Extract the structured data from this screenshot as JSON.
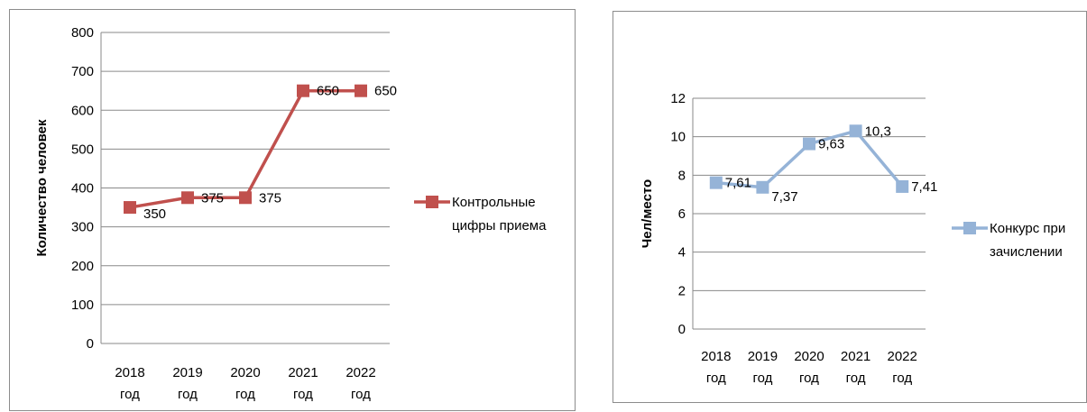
{
  "chart_data": [
    {
      "type": "line",
      "title": "",
      "ylabel": "Количество человек",
      "xlabel": "",
      "categories": [
        [
          "2018",
          "год"
        ],
        [
          "2019",
          "год"
        ],
        [
          "2020",
          "год"
        ],
        [
          "2021",
          "год"
        ],
        [
          "2022",
          "год"
        ]
      ],
      "ylim": [
        0,
        800
      ],
      "yticks": [
        "0",
        "100",
        "200",
        "300",
        "400",
        "500",
        "600",
        "700",
        "800"
      ],
      "grid": true,
      "legend": "right",
      "series": [
        {
          "name": [
            "Контрольные",
            "цифры приема"
          ],
          "values": [
            350,
            375,
            375,
            650,
            650
          ],
          "labels": [
            "350",
            "375",
            "375",
            "650",
            "650"
          ],
          "color": "#c0504d"
        }
      ]
    },
    {
      "type": "line",
      "title": "",
      "ylabel": "Чел/место",
      "xlabel": "",
      "categories": [
        [
          "2018",
          "год"
        ],
        [
          "2019",
          "год"
        ],
        [
          "2020",
          "год"
        ],
        [
          "2021",
          "год"
        ],
        [
          "2022",
          "год"
        ]
      ],
      "ylim": [
        0,
        12
      ],
      "yticks": [
        "0",
        "2",
        "4",
        "6",
        "8",
        "10",
        "12"
      ],
      "grid": true,
      "legend": "right",
      "series": [
        {
          "name": [
            "Конкурс при",
            "зачислении"
          ],
          "values": [
            7.61,
            7.37,
            9.63,
            10.3,
            7.41
          ],
          "labels": [
            "7,61",
            "7,37",
            "9,63",
            "10,3",
            "7,41"
          ],
          "color": "#95b3d7"
        }
      ]
    }
  ]
}
